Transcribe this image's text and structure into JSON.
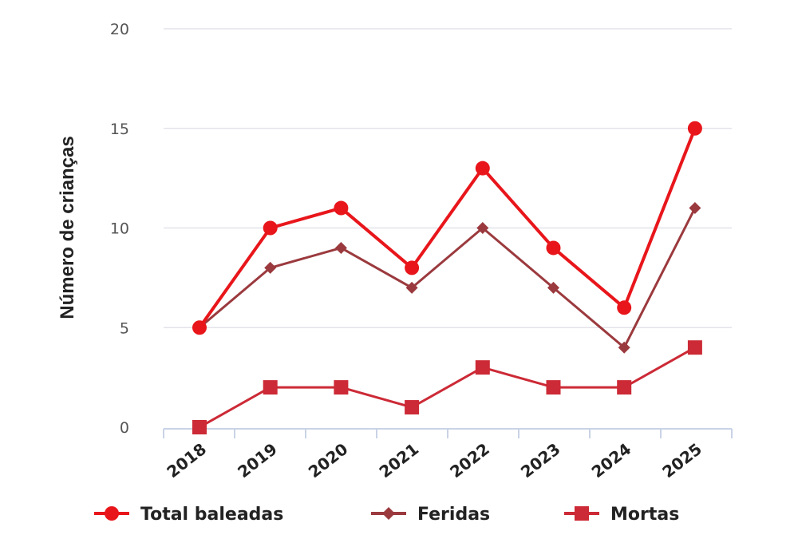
{
  "chart_data": {
    "type": "line",
    "title": "",
    "xlabel": "",
    "ylabel": "Número de crianças",
    "categories": [
      "2018",
      "2019",
      "2020",
      "2021",
      "2022",
      "2023",
      "2024",
      "2025"
    ],
    "y_ticks": [
      "0",
      "5",
      "10",
      "15",
      "20"
    ],
    "ylim": [
      0,
      20
    ],
    "grid": true,
    "legend_position": "bottom",
    "series": [
      {
        "name": "Total baleadas",
        "values": [
          5,
          10,
          11,
          8,
          13,
          9,
          6,
          15
        ],
        "color": "#e8161b",
        "marker": "circle"
      },
      {
        "name": "Feridas",
        "values": [
          5,
          8,
          9,
          7,
          10,
          7,
          4,
          11
        ],
        "color": "#9b3a3e",
        "marker": "diamond"
      },
      {
        "name": "Mortas",
        "values": [
          0,
          2,
          2,
          1,
          3,
          2,
          2,
          4
        ],
        "color": "#cc2a36",
        "marker": "square"
      }
    ]
  }
}
